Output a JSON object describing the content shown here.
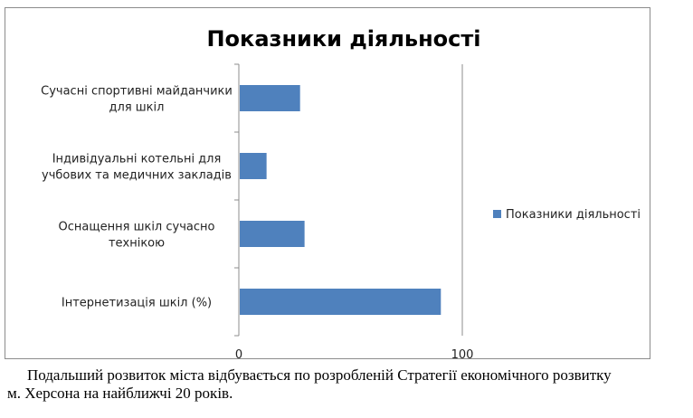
{
  "chart_data": {
    "type": "bar",
    "orientation": "horizontal",
    "title": "Показники діяльності",
    "categories": [
      [
        "Сучасні спортивні майданчики",
        "для шкіл"
      ],
      [
        "Індивідуальні котельні для",
        "учбових та медичних закладів"
      ],
      [
        "Оснащення шкіл сучасно",
        "технікою"
      ],
      [
        "Інтернетизація шкіл (%)"
      ]
    ],
    "series": [
      {
        "name": "Показники діяльності",
        "values": [
          27,
          12,
          29,
          90
        ],
        "color": "#4f81bd"
      }
    ],
    "xlim": [
      0,
      100
    ],
    "xticks": [
      "0",
      "100"
    ],
    "grid": "vertical",
    "legend": "right"
  },
  "caption": {
    "line1": "Подальший розвиток міста відбувається по розробленій Стратегії економічного розвитку",
    "line2": "м. Херсона на найближчі 20 років."
  }
}
